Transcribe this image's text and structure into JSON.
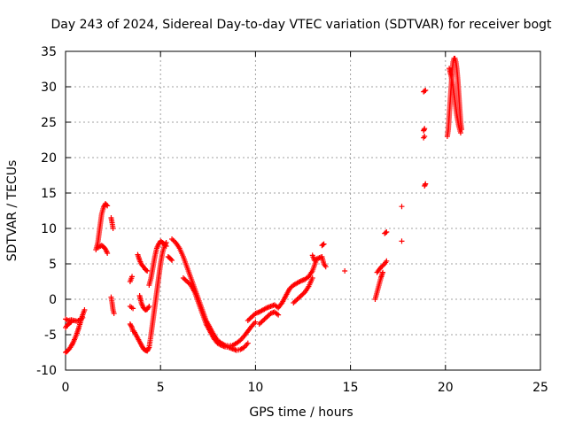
{
  "chart_data": {
    "type": "scatter",
    "title": "Day 243 of 2024, Sidereal Day-to-day VTEC variation (SDTVAR) for receiver bogt",
    "xlabel": "GPS time / hours",
    "ylabel": "SDTVAR / TECUs",
    "xlim": [
      0,
      25
    ],
    "ylim": [
      -10,
      35
    ],
    "xticks": [
      0,
      5,
      10,
      15,
      20,
      25
    ],
    "yticks": [
      -10,
      -5,
      0,
      5,
      10,
      15,
      20,
      25,
      30,
      35
    ],
    "grid": true,
    "marker": "+",
    "color": "#ff0000",
    "segments": [
      [
        [
          0.0,
          -7.5
        ],
        [
          0.1,
          -7.3
        ],
        [
          0.2,
          -7.0
        ],
        [
          0.3,
          -6.6
        ],
        [
          0.4,
          -6.1
        ],
        [
          0.5,
          -5.5
        ],
        [
          0.6,
          -4.8
        ],
        [
          0.7,
          -4.0
        ],
        [
          0.8,
          -3.1
        ],
        [
          0.9,
          -2.2
        ],
        [
          1.0,
          -1.5
        ]
      ],
      [
        [
          0.0,
          -2.8
        ],
        [
          0.15,
          -3.0
        ],
        [
          0.3,
          -2.9
        ],
        [
          0.45,
          -3.0
        ],
        [
          0.6,
          -3.1
        ],
        [
          0.75,
          -2.9
        ],
        [
          0.9,
          -2.6
        ]
      ],
      [
        [
          0.0,
          -4.0
        ],
        [
          0.1,
          -3.6
        ],
        [
          0.2,
          -3.4
        ],
        [
          0.3,
          -3.2
        ]
      ],
      [
        [
          1.6,
          7.0
        ],
        [
          1.7,
          8.0
        ],
        [
          1.8,
          10.0
        ],
        [
          1.9,
          12.0
        ],
        [
          2.0,
          13.0
        ],
        [
          2.1,
          13.5
        ],
        [
          2.2,
          13.2
        ]
      ],
      [
        [
          1.7,
          7.3
        ],
        [
          1.9,
          7.6
        ],
        [
          2.0,
          7.4
        ],
        [
          2.1,
          7.1
        ],
        [
          2.2,
          6.5
        ]
      ],
      [
        [
          2.4,
          11.5
        ],
        [
          2.45,
          10.8
        ],
        [
          2.5,
          10.0
        ]
      ],
      [
        [
          2.4,
          0.3
        ],
        [
          2.45,
          -0.5
        ],
        [
          2.5,
          -1.5
        ],
        [
          2.55,
          -2.0
        ]
      ],
      [
        [
          3.4,
          2.5
        ],
        [
          3.5,
          3.2
        ]
      ],
      [
        [
          3.4,
          -3.5
        ],
        [
          3.5,
          -4.0
        ],
        [
          3.55,
          -4.5
        ]
      ],
      [
        [
          3.4,
          -1.0
        ],
        [
          3.55,
          -1.3
        ]
      ],
      [
        [
          3.6,
          -4.5
        ],
        [
          3.8,
          -5.5
        ],
        [
          4.0,
          -6.5
        ],
        [
          4.1,
          -7.0
        ],
        [
          4.2,
          -7.2
        ],
        [
          4.3,
          -7.3
        ],
        [
          4.4,
          -6.8
        ],
        [
          4.5,
          -5.0
        ],
        [
          4.6,
          -3.0
        ],
        [
          4.7,
          -1.0
        ],
        [
          4.8,
          1.0
        ],
        [
          4.9,
          3.0
        ],
        [
          5.0,
          5.0
        ],
        [
          5.1,
          6.5
        ],
        [
          5.2,
          7.5
        ],
        [
          5.3,
          8.0
        ]
      ],
      [
        [
          3.8,
          6.3
        ],
        [
          3.9,
          5.5
        ],
        [
          4.0,
          4.9
        ],
        [
          4.1,
          4.6
        ],
        [
          4.2,
          4.2
        ],
        [
          4.3,
          4.0
        ]
      ],
      [
        [
          4.4,
          2.0
        ],
        [
          4.5,
          3.0
        ],
        [
          4.6,
          4.5
        ],
        [
          4.7,
          6.0
        ],
        [
          4.8,
          7.2
        ],
        [
          4.9,
          7.8
        ],
        [
          5.0,
          8.2
        ],
        [
          5.1,
          8.0
        ],
        [
          5.2,
          7.8
        ],
        [
          5.3,
          7.5
        ]
      ],
      [
        [
          3.9,
          0.5
        ],
        [
          4.0,
          -0.6
        ],
        [
          4.1,
          -1.2
        ],
        [
          4.2,
          -1.5
        ],
        [
          4.3,
          -1.4
        ],
        [
          4.4,
          -1.0
        ]
      ],
      [
        [
          5.4,
          6.0
        ],
        [
          5.5,
          5.8
        ],
        [
          5.6,
          5.5
        ]
      ],
      [
        [
          5.6,
          8.5
        ],
        [
          5.8,
          8.0
        ],
        [
          6.0,
          7.2
        ],
        [
          6.2,
          6.0
        ],
        [
          6.4,
          4.5
        ],
        [
          6.6,
          3.0
        ],
        [
          6.8,
          1.5
        ],
        [
          7.0,
          0.0
        ],
        [
          7.2,
          -1.5
        ],
        [
          7.4,
          -3.0
        ],
        [
          7.6,
          -4.0
        ],
        [
          7.8,
          -5.0
        ],
        [
          8.0,
          -5.8
        ],
        [
          8.2,
          -6.2
        ],
        [
          8.4,
          -6.5
        ],
        [
          8.6,
          -6.6
        ],
        [
          8.8,
          -6.5
        ],
        [
          9.0,
          -6.2
        ],
        [
          9.2,
          -5.8
        ],
        [
          9.4,
          -5.2
        ],
        [
          9.6,
          -4.5
        ],
        [
          9.8,
          -3.8
        ],
        [
          10.0,
          -3.2
        ]
      ],
      [
        [
          6.2,
          3.0
        ],
        [
          6.4,
          2.5
        ],
        [
          6.6,
          2.0
        ],
        [
          6.8,
          1.0
        ],
        [
          7.0,
          -0.5
        ],
        [
          7.2,
          -2.0
        ],
        [
          7.4,
          -3.5
        ],
        [
          7.6,
          -4.5
        ],
        [
          7.8,
          -5.5
        ],
        [
          8.0,
          -6.2
        ],
        [
          8.2,
          -6.5
        ],
        [
          8.4,
          -6.7
        ],
        [
          8.6,
          -6.8
        ],
        [
          8.8,
          -7.0
        ],
        [
          9.0,
          -7.2
        ],
        [
          9.2,
          -7.1
        ],
        [
          9.4,
          -6.8
        ],
        [
          9.6,
          -6.2
        ]
      ],
      [
        [
          9.6,
          -3.0
        ],
        [
          9.8,
          -2.5
        ],
        [
          10.0,
          -2.0
        ],
        [
          10.2,
          -1.8
        ],
        [
          10.4,
          -1.5
        ],
        [
          10.6,
          -1.2
        ],
        [
          10.8,
          -1.0
        ],
        [
          11.0,
          -0.8
        ],
        [
          11.2,
          -1.2
        ],
        [
          11.4,
          -0.5
        ],
        [
          11.6,
          0.5
        ],
        [
          11.8,
          1.5
        ],
        [
          12.0,
          2.0
        ],
        [
          12.2,
          2.3
        ],
        [
          12.4,
          2.6
        ],
        [
          12.6,
          2.8
        ],
        [
          12.8,
          3.2
        ],
        [
          13.0,
          4.0
        ],
        [
          13.2,
          5.5
        ]
      ],
      [
        [
          10.2,
          -3.5
        ],
        [
          10.4,
          -3.0
        ],
        [
          10.6,
          -2.5
        ],
        [
          10.8,
          -2.0
        ],
        [
          11.0,
          -1.8
        ],
        [
          11.2,
          -2.2
        ]
      ],
      [
        [
          12.0,
          -0.5
        ],
        [
          12.2,
          0.0
        ],
        [
          12.4,
          0.5
        ],
        [
          12.6,
          1.0
        ],
        [
          12.8,
          1.8
        ],
        [
          13.0,
          3.0
        ]
      ],
      [
        [
          13.0,
          6.2
        ],
        [
          13.1,
          5.5
        ],
        [
          13.3,
          5.8
        ],
        [
          13.5,
          6.0
        ],
        [
          13.6,
          5.0
        ],
        [
          13.7,
          4.6
        ]
      ],
      [
        [
          13.5,
          7.6
        ],
        [
          13.6,
          7.8
        ]
      ],
      [
        [
          14.7,
          4.0
        ]
      ],
      [
        [
          16.3,
          0.0
        ],
        [
          16.4,
          1.0
        ],
        [
          16.5,
          2.0
        ],
        [
          16.6,
          3.0
        ],
        [
          16.7,
          3.8
        ]
      ],
      [
        [
          16.4,
          3.8
        ],
        [
          16.6,
          4.5
        ],
        [
          16.8,
          5.0
        ],
        [
          16.9,
          5.4
        ]
      ],
      [
        [
          16.8,
          9.3
        ],
        [
          16.9,
          9.5
        ]
      ],
      [
        [
          17.7,
          13.1
        ]
      ],
      [
        [
          17.7,
          8.2
        ]
      ],
      [
        [
          18.9,
          16.0
        ],
        [
          18.95,
          16.3
        ]
      ],
      [
        [
          18.85,
          22.8
        ],
        [
          18.9,
          23.0
        ]
      ],
      [
        [
          18.85,
          23.8
        ],
        [
          18.9,
          24.1
        ]
      ],
      [
        [
          18.85,
          29.3
        ],
        [
          18.95,
          29.5
        ]
      ],
      [
        [
          20.1,
          23.0
        ],
        [
          20.15,
          24.0
        ],
        [
          20.2,
          26.0
        ],
        [
          20.25,
          28.0
        ],
        [
          20.3,
          30.0
        ],
        [
          20.35,
          32.0
        ],
        [
          20.4,
          33.5
        ],
        [
          20.45,
          34.0
        ],
        [
          20.5,
          34.0
        ],
        [
          20.55,
          33.5
        ],
        [
          20.6,
          32.5
        ],
        [
          20.65,
          31.0
        ],
        [
          20.7,
          29.0
        ],
        [
          20.75,
          27.0
        ],
        [
          20.8,
          25.0
        ],
        [
          20.85,
          24.0
        ]
      ],
      [
        [
          20.2,
          32.6
        ],
        [
          20.3,
          31.5
        ],
        [
          20.4,
          30.0
        ],
        [
          20.5,
          28.0
        ],
        [
          20.6,
          26.0
        ],
        [
          20.7,
          24.5
        ],
        [
          20.8,
          23.5
        ]
      ]
    ]
  }
}
